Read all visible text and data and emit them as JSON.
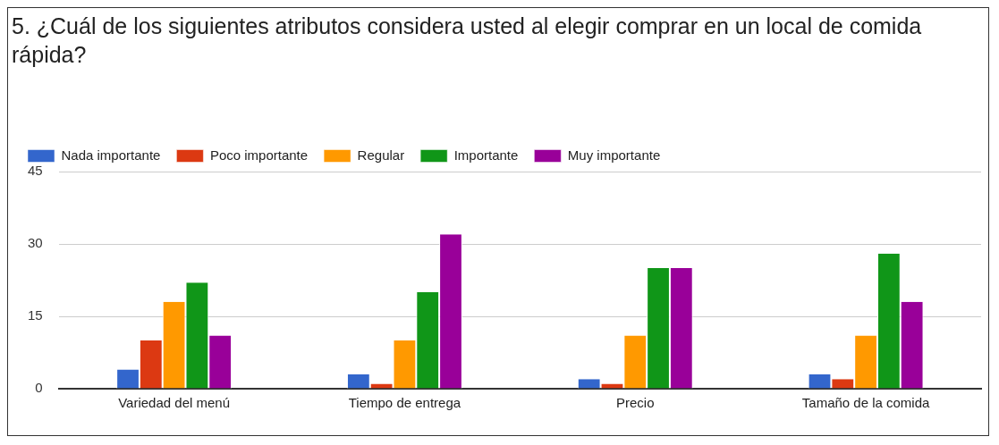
{
  "chart_data": {
    "type": "bar",
    "title": "5. ¿Cuál de los siguientes atributos considera usted al elegir comprar en un local de comida rápida?",
    "categories": [
      "Variedad del menú",
      "Tiempo de entrega",
      "Precio",
      "Tamaño de la comida"
    ],
    "series": [
      {
        "name": "Nada importante",
        "color": "#3366cc",
        "values": [
          4,
          3,
          2,
          3
        ]
      },
      {
        "name": "Poco importante",
        "color": "#dc3912",
        "values": [
          10,
          1,
          1,
          2
        ]
      },
      {
        "name": "Regular",
        "color": "#ff9900",
        "values": [
          18,
          10,
          11,
          11
        ]
      },
      {
        "name": "Importante",
        "color": "#109618",
        "values": [
          22,
          20,
          25,
          28
        ]
      },
      {
        "name": "Muy importante",
        "color": "#990099",
        "values": [
          11,
          32,
          25,
          18
        ]
      }
    ],
    "ylim": [
      0,
      45
    ],
    "yticks": [
      0,
      15,
      30,
      45
    ],
    "grid": "y",
    "legend": "top left"
  }
}
